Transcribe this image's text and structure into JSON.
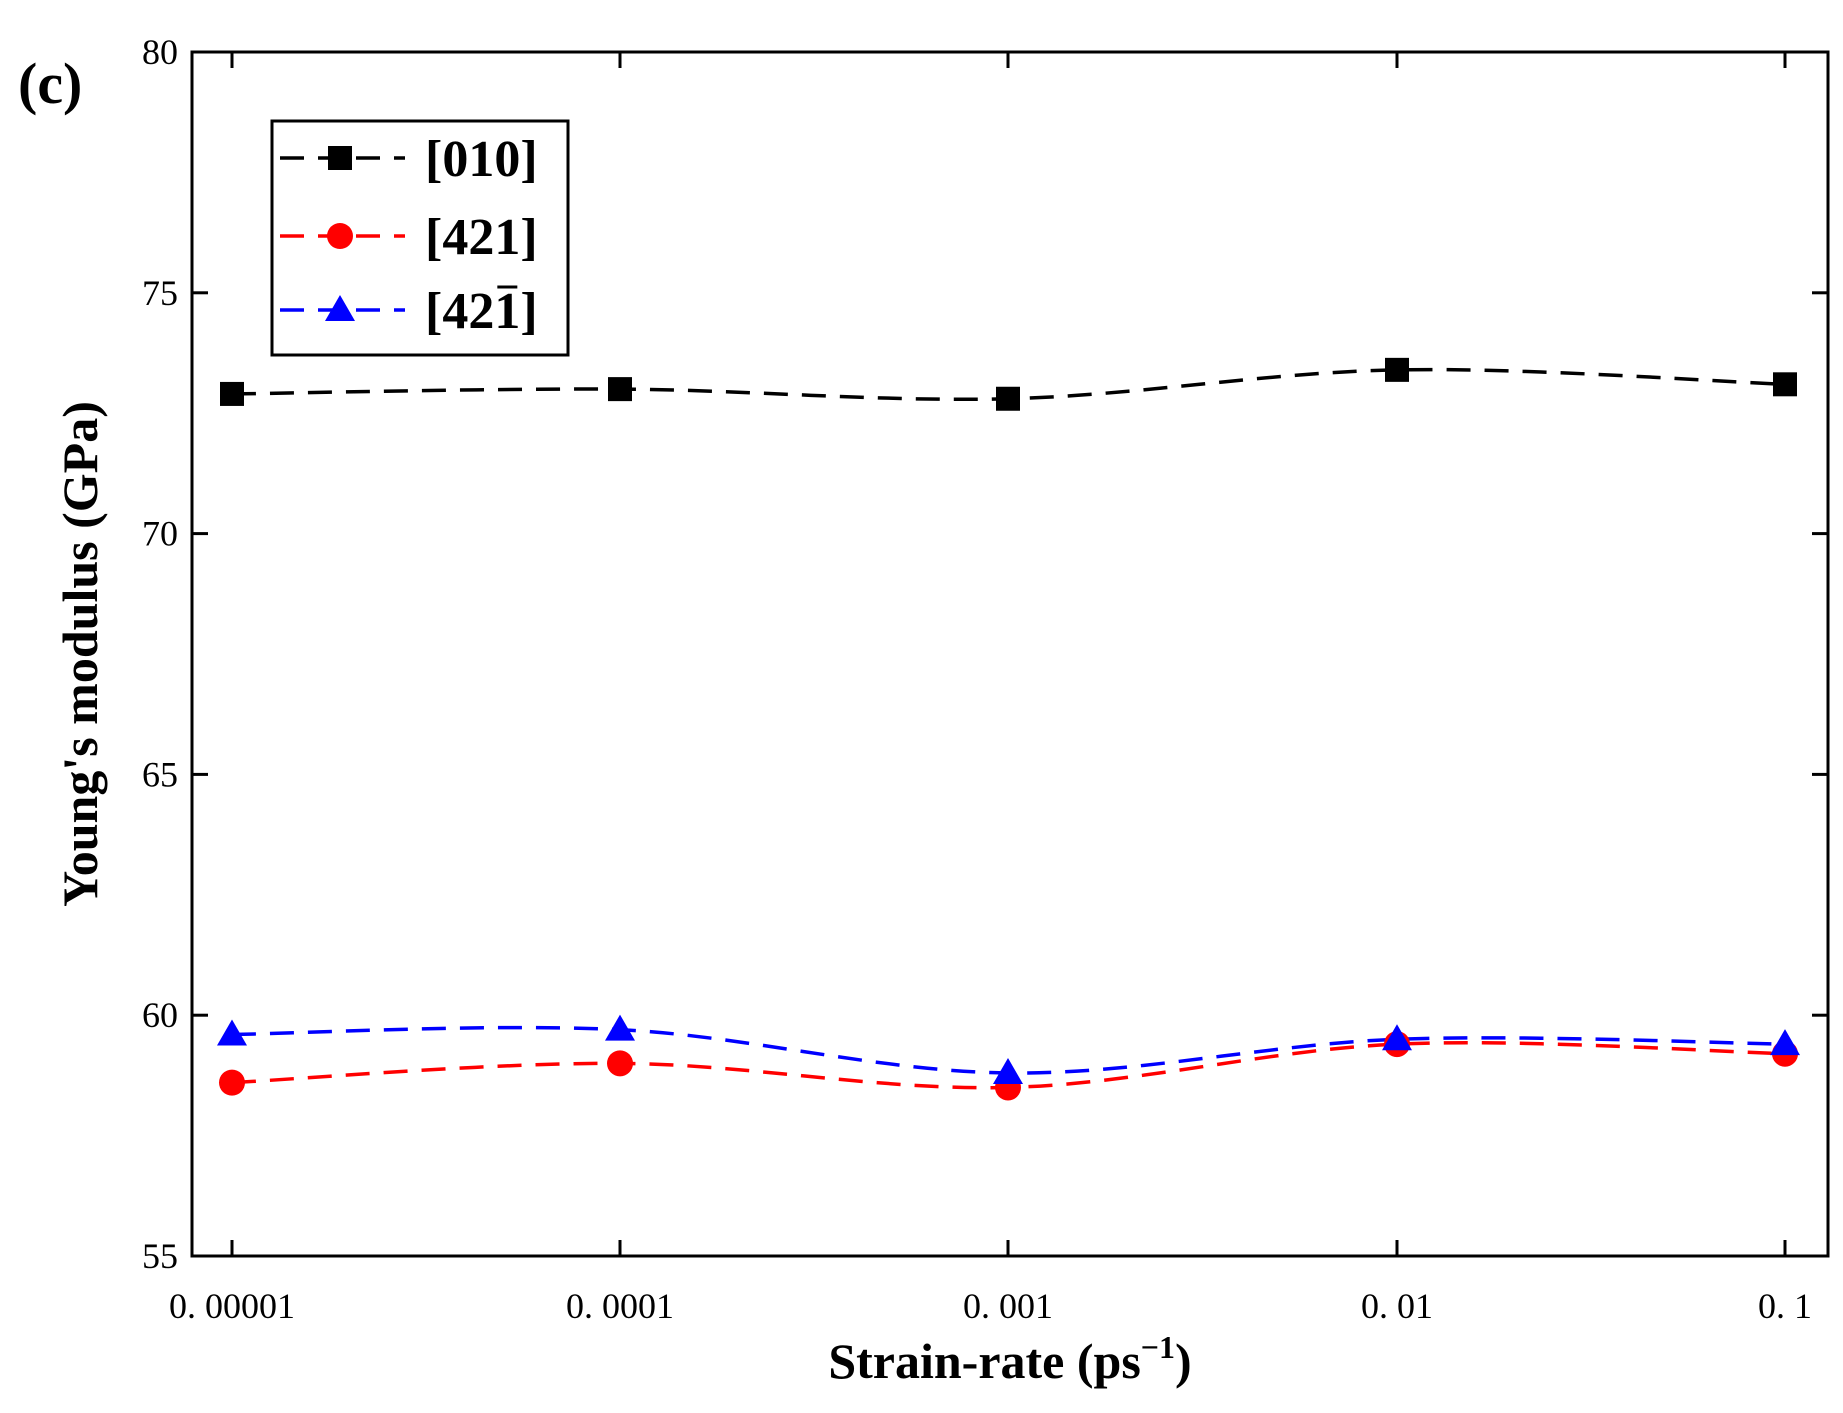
{
  "panel_label": "(c)",
  "chart_data": {
    "type": "line",
    "title": "",
    "xlabel": "Strain-rate (ps",
    "xlabel_superscript": "−1",
    "xlabel_suffix": ")",
    "ylabel": "Young's modulus (GPa)",
    "ylim": [
      55,
      80
    ],
    "yticks": [
      "55",
      "60",
      "65",
      "70",
      "75",
      "80"
    ],
    "categories": [
      "0. 00001",
      "0. 0001",
      "0. 001",
      "0. 01",
      "0. 1"
    ],
    "legend_position": "top-left",
    "series": [
      {
        "name": "[010]",
        "label_main": "[01",
        "label_digit": "0",
        "label_close": "]",
        "overbar": false,
        "marker": "square",
        "color": "#000000",
        "values": [
          72.9,
          73.0,
          72.8,
          73.4,
          73.1
        ]
      },
      {
        "name": "[421]",
        "label_main": "[42",
        "label_digit": "1",
        "label_close": "]",
        "overbar": false,
        "marker": "circle",
        "color": "#ff0000",
        "values": [
          58.6,
          59.0,
          58.5,
          59.4,
          59.2
        ]
      },
      {
        "name": "[42-1]",
        "label_main": "[42",
        "label_digit": "1",
        "label_close": "]",
        "overbar": true,
        "marker": "triangle",
        "color": "#0000ff",
        "values": [
          59.6,
          59.7,
          58.8,
          59.5,
          59.4
        ]
      }
    ]
  }
}
